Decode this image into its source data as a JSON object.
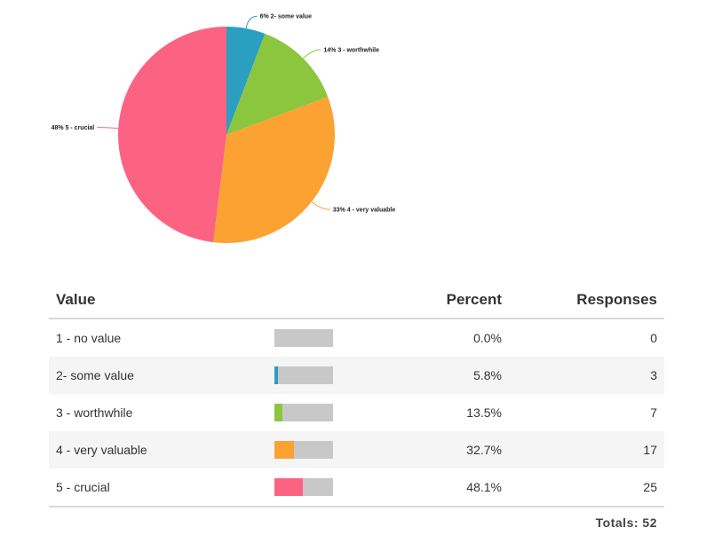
{
  "chart_data": {
    "type": "pie",
    "slices": [
      {
        "label": "2- some value",
        "display_label": "6% 2- some value",
        "percent": 5.8,
        "color": "#2b9fc0"
      },
      {
        "label": "3 - worthwhile",
        "display_label": "14% 3 - worthwhile",
        "percent": 13.5,
        "color": "#8cc63f"
      },
      {
        "label": "4 - very valuable",
        "display_label": "33% 4 - very valuable",
        "percent": 32.7,
        "color": "#fba232"
      },
      {
        "label": "5 - crucial",
        "display_label": "48% 5 - crucial",
        "percent": 48.1,
        "color": "#fc6382"
      }
    ]
  },
  "table": {
    "headers": {
      "value": "Value",
      "percent": "Percent",
      "responses": "Responses"
    },
    "rows": [
      {
        "label": "1 - no value",
        "percent": "0.0%",
        "fraction": 0.0,
        "responses": "0",
        "color": "#2b9fc0"
      },
      {
        "label": "2- some value",
        "percent": "5.8%",
        "fraction": 0.058,
        "responses": "3",
        "color": "#2b9fc0"
      },
      {
        "label": "3 - worthwhile",
        "percent": "13.5%",
        "fraction": 0.135,
        "responses": "7",
        "color": "#8cc63f"
      },
      {
        "label": "4 - very valuable",
        "percent": "32.7%",
        "fraction": 0.327,
        "responses": "17",
        "color": "#fba232"
      },
      {
        "label": "5 - crucial",
        "percent": "48.1%",
        "fraction": 0.481,
        "responses": "25",
        "color": "#fc6382"
      }
    ],
    "totals_label": "Totals:",
    "totals_value": "52"
  }
}
